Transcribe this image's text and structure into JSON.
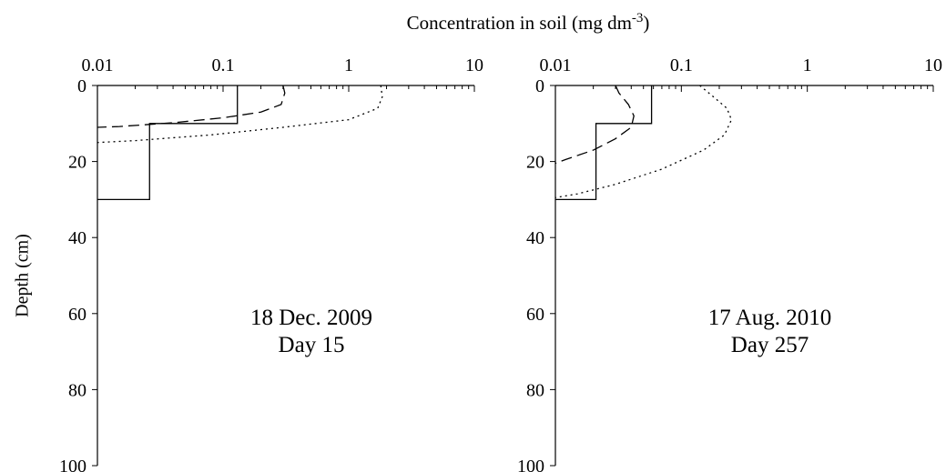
{
  "chart_data": [
    {
      "type": "line",
      "title": "Concentration in soil (mg dm",
      "title_superscript": "-3",
      "title_end": ")",
      "ylabel": "Depth (cm)",
      "annotations": [
        "18 Dec. 2009",
        "Day 15"
      ],
      "xscale": "log",
      "xlim": [
        0.01,
        10
      ],
      "xticks": [
        0.01,
        0.1,
        1,
        10
      ],
      "ylim": [
        0,
        100
      ],
      "yticks": [
        0,
        20,
        40,
        60,
        80,
        100
      ],
      "y_inverted": true,
      "series": [
        {
          "color": "#000000",
          "style": "solid",
          "x": [
            0.13,
            0.13,
            0.026,
            0.026,
            0.01
          ],
          "values": [
            0,
            10,
            10,
            30,
            30
          ]
        },
        {
          "color": "#000000",
          "style": "dashed",
          "x": [
            0.3,
            0.31,
            0.29,
            0.2,
            0.1,
            0.04,
            0.015,
            0.01
          ],
          "values": [
            0,
            2,
            5,
            7,
            8.5,
            9.8,
            10.8,
            11
          ]
        },
        {
          "color": "#000000",
          "style": "dotted",
          "x": [
            1.8,
            1.85,
            1.7,
            1,
            0.3,
            0.08,
            0.02,
            0.01
          ],
          "values": [
            0,
            3,
            6,
            9,
            11,
            13,
            14.5,
            15
          ]
        }
      ]
    },
    {
      "type": "line",
      "annotations": [
        "17 Aug. 2010",
        "Day 257"
      ],
      "xscale": "log",
      "xlim": [
        0.01,
        10
      ],
      "xticks": [
        0.01,
        0.1,
        1,
        10
      ],
      "ylim": [
        0,
        100
      ],
      "yticks": [
        0,
        20,
        40,
        60,
        80,
        100
      ],
      "y_inverted": true,
      "series": [
        {
          "color": "#000000",
          "style": "solid",
          "x": [
            0.058,
            0.058,
            0.021,
            0.021,
            0.01
          ],
          "values": [
            0,
            10,
            10,
            30,
            30
          ]
        },
        {
          "color": "#000000",
          "style": "dashed",
          "x": [
            0.03,
            0.032,
            0.038,
            0.042,
            0.04,
            0.03,
            0.02,
            0.012,
            0.01
          ],
          "values": [
            0,
            2,
            5,
            8,
            11,
            14,
            17,
            19.5,
            20.5
          ]
        },
        {
          "color": "#000000",
          "style": "dotted",
          "x": [
            0.14,
            0.18,
            0.23,
            0.25,
            0.22,
            0.15,
            0.07,
            0.03,
            0.015,
            0.01
          ],
          "values": [
            0,
            3,
            6,
            9,
            13,
            17,
            22,
            26,
            28.5,
            29.5
          ]
        }
      ]
    }
  ]
}
